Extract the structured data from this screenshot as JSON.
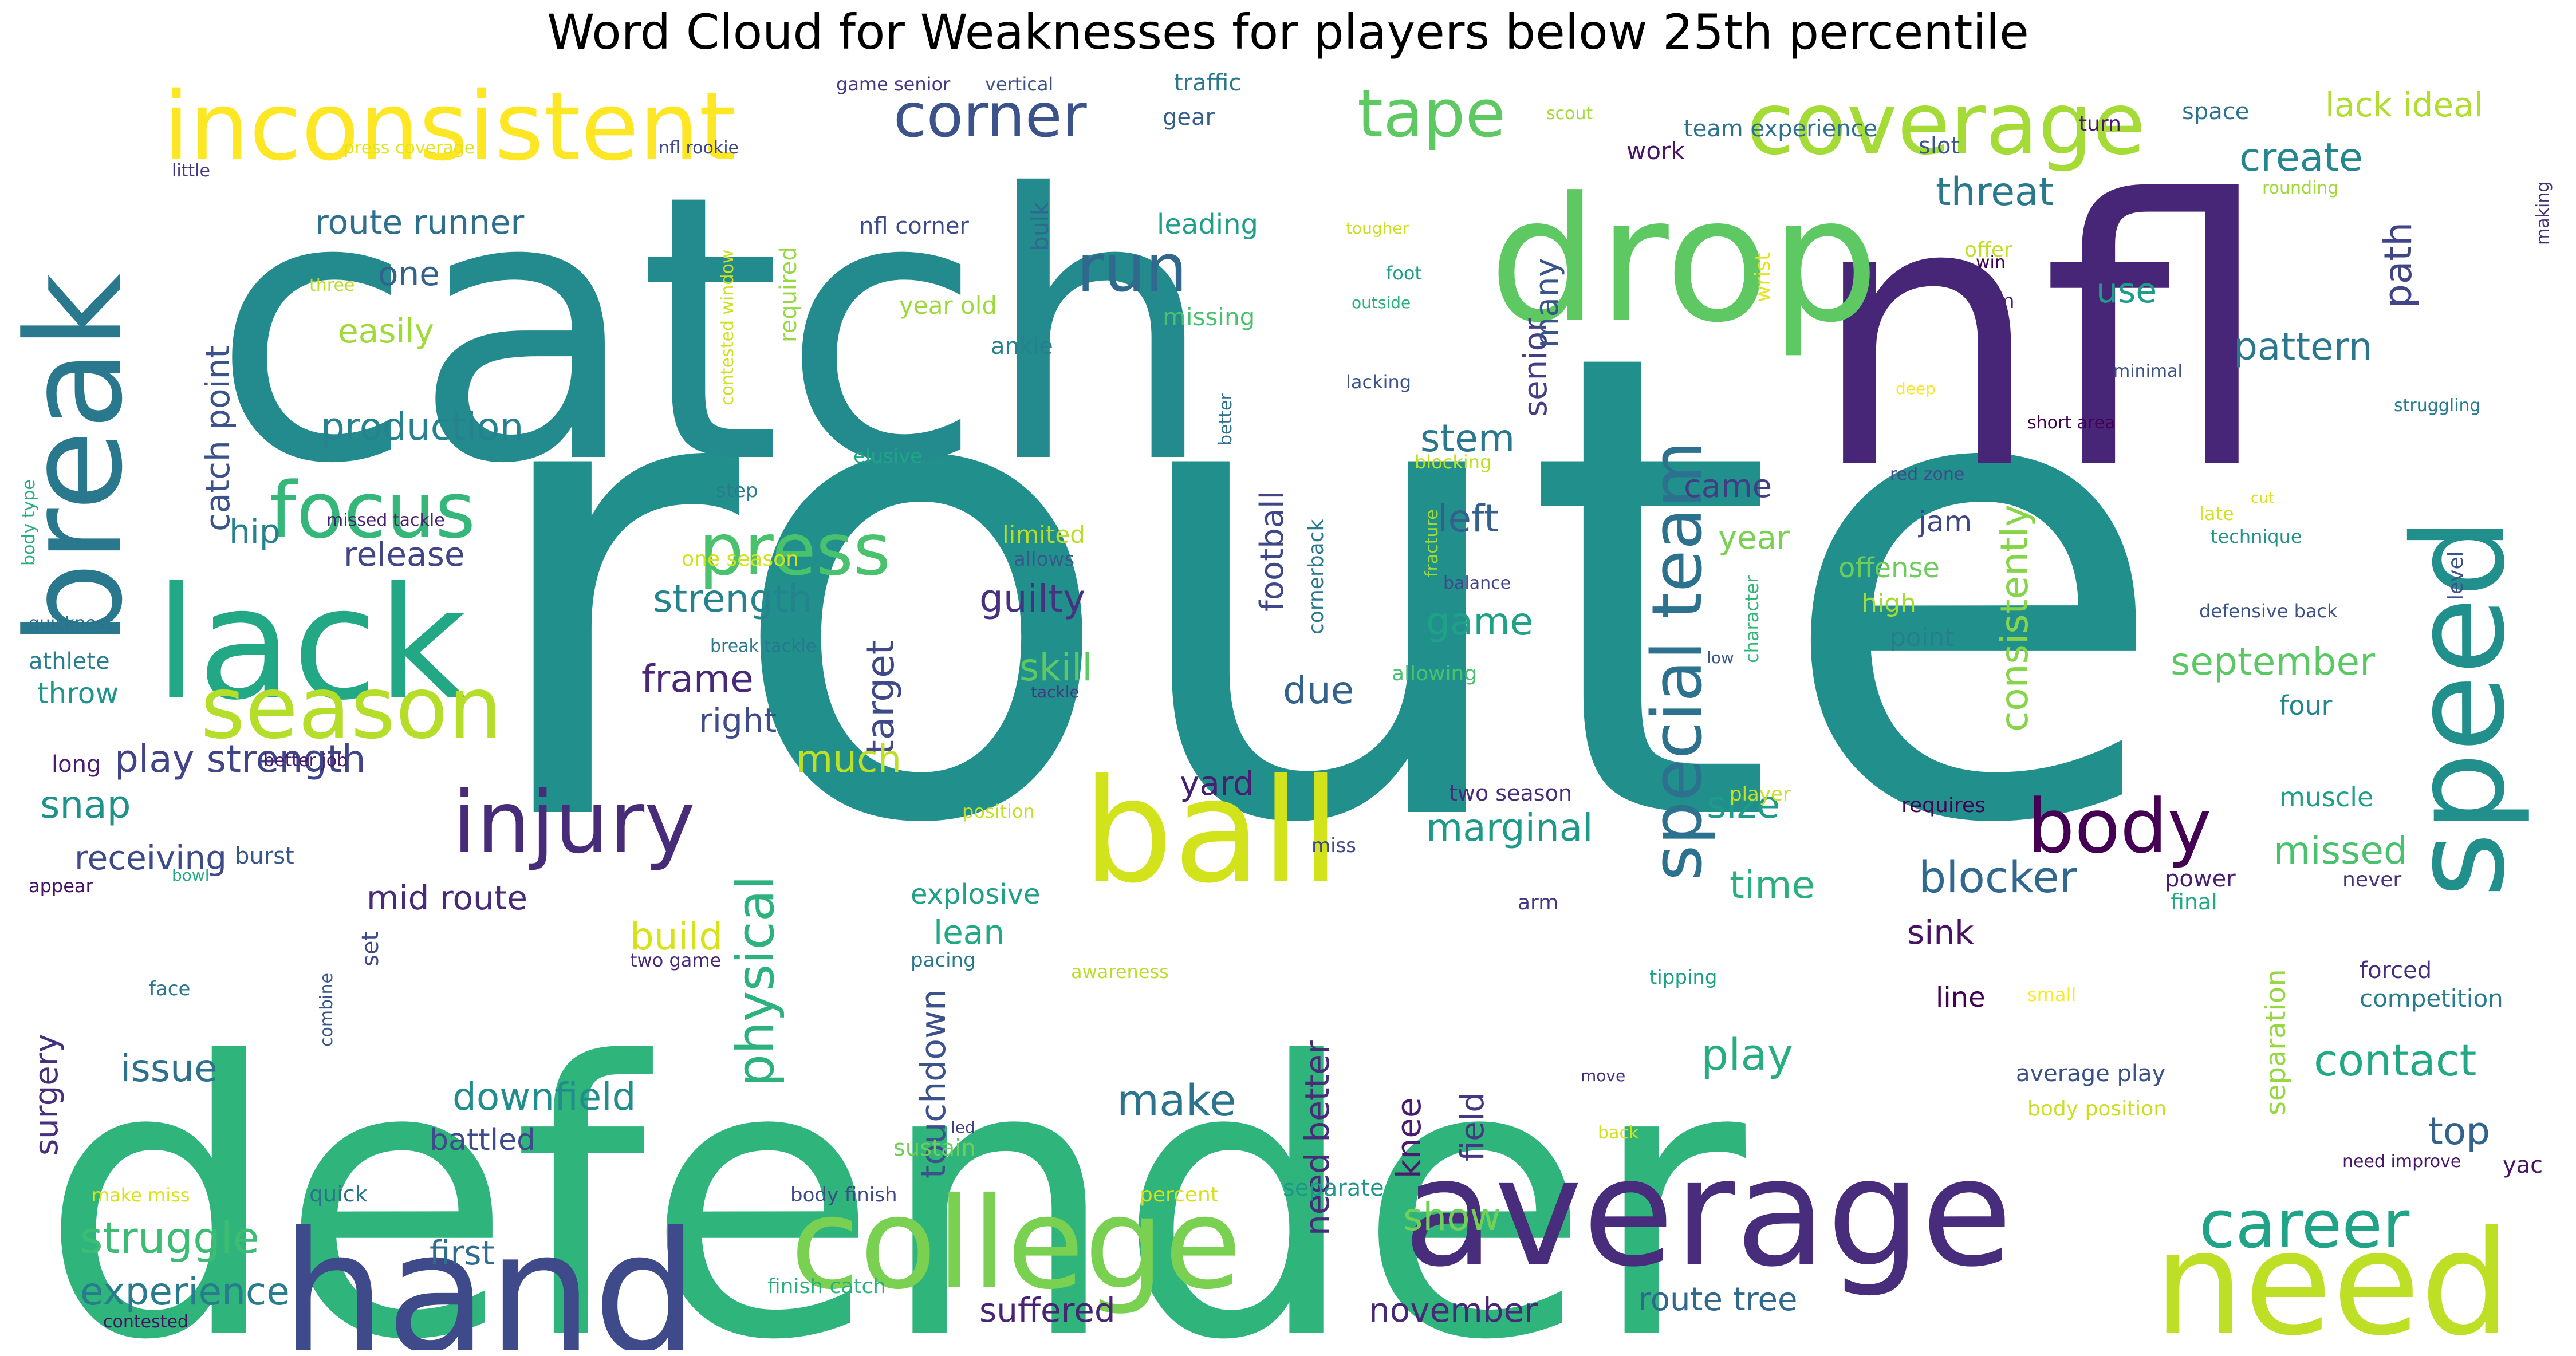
{
  "title": "Word Cloud for Weaknesses for players below 25th percentile",
  "words": [
    {
      "text": "route",
      "color": "#21908d"
    },
    {
      "text": "defender",
      "color": "#2fb47c"
    },
    {
      "text": "catch",
      "color": "#238a8d"
    },
    {
      "text": "nfl",
      "color": "#482677"
    },
    {
      "text": "speed",
      "color": "#21908d"
    },
    {
      "text": "break",
      "color": "#2a788e"
    },
    {
      "text": "lack",
      "color": "#22a884"
    },
    {
      "text": "drop",
      "color": "#5ec962"
    },
    {
      "text": "inconsistent",
      "color": "#fde725"
    },
    {
      "text": "hand",
      "color": "#3e4a89"
    },
    {
      "text": "average",
      "color": "#472d7b"
    },
    {
      "text": "college",
      "color": "#7ad151"
    },
    {
      "text": "need",
      "color": "#bddf26"
    },
    {
      "text": "ball",
      "color": "#d2e21b"
    },
    {
      "text": "coverage",
      "color": "#a5db36"
    },
    {
      "text": "season",
      "color": "#b5de2b"
    },
    {
      "text": "injury",
      "color": "#472c7a"
    },
    {
      "text": "corner",
      "color": "#3b528b"
    },
    {
      "text": "tape",
      "color": "#5ec962"
    },
    {
      "text": "run",
      "color": "#31688e"
    },
    {
      "text": "special team",
      "color": "#2c728e"
    },
    {
      "text": "body",
      "color": "#440154"
    },
    {
      "text": "focus",
      "color": "#35b779"
    },
    {
      "text": "press",
      "color": "#4ac16d"
    },
    {
      "text": "physical",
      "color": "#2db27d"
    },
    {
      "text": "career",
      "color": "#20a386"
    },
    {
      "text": "route runner",
      "color": "#2e6f8e"
    },
    {
      "text": "catch point",
      "color": "#3b528b"
    },
    {
      "text": "one",
      "color": "#33638d"
    },
    {
      "text": "easily",
      "color": "#a0da39"
    },
    {
      "text": "production",
      "color": "#26828e"
    },
    {
      "text": "threat",
      "color": "#29798e"
    },
    {
      "text": "create",
      "color": "#24868e"
    },
    {
      "text": "lack ideal",
      "color": "#b0dd2f"
    },
    {
      "text": "use",
      "color": "#1e9c89"
    },
    {
      "text": "path",
      "color": "#414487"
    },
    {
      "text": "pattern",
      "color": "#2a778e"
    },
    {
      "text": "consistently",
      "color": "#86d549"
    },
    {
      "text": "strength",
      "color": "#25838e"
    },
    {
      "text": "frame",
      "color": "#482878"
    },
    {
      "text": "guilty",
      "color": "#46327e"
    },
    {
      "text": "skill",
      "color": "#5ec962"
    },
    {
      "text": "target",
      "color": "#3e4989"
    },
    {
      "text": "left",
      "color": "#355f8d"
    },
    {
      "text": "stem",
      "color": "#2a788e"
    },
    {
      "text": "football",
      "color": "#3f4788"
    },
    {
      "text": "senior",
      "color": "#433e85"
    },
    {
      "text": "many",
      "color": "#39568c"
    },
    {
      "text": "game",
      "color": "#1fa187"
    },
    {
      "text": "year",
      "color": "#7ad151"
    },
    {
      "text": "came",
      "color": "#433d84"
    },
    {
      "text": "jam",
      "color": "#3f4788"
    },
    {
      "text": "september",
      "color": "#5cc863"
    },
    {
      "text": "four",
      "color": "#24868e"
    },
    {
      "text": "offense",
      "color": "#6ccd5a"
    },
    {
      "text": "high",
      "color": "#a5db36"
    },
    {
      "text": "point",
      "color": "#287d8e"
    },
    {
      "text": "due",
      "color": "#33638d"
    },
    {
      "text": "right",
      "color": "#3e4c8a"
    },
    {
      "text": "much",
      "color": "#bddf26"
    },
    {
      "text": "play strength",
      "color": "#414487"
    },
    {
      "text": "release",
      "color": "#404688"
    },
    {
      "text": "hip",
      "color": "#26818e"
    },
    {
      "text": "throw",
      "color": "#1f968b"
    },
    {
      "text": "athlete",
      "color": "#287d8e"
    },
    {
      "text": "snap",
      "color": "#20928c"
    },
    {
      "text": "receiving",
      "color": "#3e4a89"
    },
    {
      "text": "mid route",
      "color": "#472a7a"
    },
    {
      "text": "build",
      "color": "#d8e219"
    },
    {
      "text": "yard",
      "color": "#481f70"
    },
    {
      "text": "marginal",
      "color": "#1f9a8a"
    },
    {
      "text": "time",
      "color": "#2ab07f"
    },
    {
      "text": "size",
      "color": "#1e9b8a"
    },
    {
      "text": "blocker",
      "color": "#31688e"
    },
    {
      "text": "missed",
      "color": "#4ac16d"
    },
    {
      "text": "sink",
      "color": "#471164"
    },
    {
      "text": "lean",
      "color": "#22a884"
    },
    {
      "text": "explosive",
      "color": "#1fa088"
    },
    {
      "text": "touchdown",
      "color": "#3b528b"
    },
    {
      "text": "surgery",
      "color": "#46307e"
    },
    {
      "text": "issue",
      "color": "#2c728e"
    },
    {
      "text": "downfield",
      "color": "#228d8d"
    },
    {
      "text": "battled",
      "color": "#3e4a89"
    },
    {
      "text": "make",
      "color": "#2c738e"
    },
    {
      "text": "need better",
      "color": "#472c7a"
    },
    {
      "text": "knee",
      "color": "#481b6d"
    },
    {
      "text": "field",
      "color": "#453882"
    },
    {
      "text": "show",
      "color": "#73d056"
    },
    {
      "text": "play",
      "color": "#27ad81"
    },
    {
      "text": "contact",
      "color": "#22a884"
    },
    {
      "text": "top",
      "color": "#33638d"
    },
    {
      "text": "separation",
      "color": "#95d840"
    },
    {
      "text": "line",
      "color": "#440154"
    },
    {
      "text": "struggle",
      "color": "#3dbc74"
    },
    {
      "text": "experience",
      "color": "#287c8e"
    },
    {
      "text": "first",
      "color": "#2f6c8e"
    },
    {
      "text": "suffered",
      "color": "#482475"
    },
    {
      "text": "november",
      "color": "#482878"
    },
    {
      "text": "route tree",
      "color": "#31688e"
    },
    {
      "text": "work",
      "color": "#481467"
    },
    {
      "text": "team experience",
      "color": "#2c728e"
    },
    {
      "text": "slot",
      "color": "#3a548c"
    },
    {
      "text": "gear",
      "color": "#355e8d"
    },
    {
      "text": "traffic",
      "color": "#2a788e"
    },
    {
      "text": "leading",
      "color": "#1f9e89"
    },
    {
      "text": "nfl corner",
      "color": "#3e4a89"
    },
    {
      "text": "year old",
      "color": "#9bd93c"
    },
    {
      "text": "missing",
      "color": "#48c16e"
    },
    {
      "text": "ankle",
      "color": "#26818e"
    },
    {
      "text": "bulk",
      "color": "#31688e"
    },
    {
      "text": "required",
      "color": "#95d840"
    },
    {
      "text": "contested window",
      "color": "#cde11d"
    },
    {
      "text": "wrist",
      "color": "#e5e419"
    },
    {
      "text": "offer",
      "color": "#c0df25"
    },
    {
      "text": "win",
      "color": "#440154"
    },
    {
      "text": "film",
      "color": "#482475"
    },
    {
      "text": "minimal",
      "color": "#3b528b"
    },
    {
      "text": "rounding",
      "color": "#a0da39"
    },
    {
      "text": "making",
      "color": "#46307e"
    },
    {
      "text": "space",
      "color": "#2c728e"
    },
    {
      "text": "turn",
      "color": "#481a6c"
    },
    {
      "text": "scout",
      "color": "#a2da37"
    },
    {
      "text": "game senior",
      "color": "#453781"
    },
    {
      "text": "vertical",
      "color": "#3b528b"
    },
    {
      "text": "press coverage",
      "color": "#e5e419"
    },
    {
      "text": "nfl rookie",
      "color": "#3e4989"
    },
    {
      "text": "little",
      "color": "#453581"
    },
    {
      "text": "three",
      "color": "#bade28"
    },
    {
      "text": "missed tackle",
      "color": "#482071"
    },
    {
      "text": "tougher",
      "color": "#c8e020"
    },
    {
      "text": "foot",
      "color": "#1f9a8a"
    },
    {
      "text": "outside",
      "color": "#2ab07f"
    },
    {
      "text": "lacking",
      "color": "#3b528b"
    },
    {
      "text": "deep",
      "color": "#fde725"
    },
    {
      "text": "better",
      "color": "#2d718e"
    },
    {
      "text": "blocking",
      "color": "#bddf26"
    },
    {
      "text": "struggling",
      "color": "#287c8e"
    },
    {
      "text": "short area",
      "color": "#440154"
    },
    {
      "text": "red zone",
      "color": "#3e4a89"
    },
    {
      "text": "late",
      "color": "#d2e21b"
    },
    {
      "text": "cut",
      "color": "#d8e219"
    },
    {
      "text": "technique",
      "color": "#21918c"
    },
    {
      "text": "level",
      "color": "#3b528b"
    },
    {
      "text": "elusive",
      "color": "#20a486"
    },
    {
      "text": "step",
      "color": "#297b8e"
    },
    {
      "text": "limited",
      "color": "#bade28"
    },
    {
      "text": "allows",
      "color": "#38598c"
    },
    {
      "text": "one season",
      "color": "#d2e21b"
    },
    {
      "text": "break tackle",
      "color": "#2a768e"
    },
    {
      "text": "tackle",
      "color": "#453882"
    },
    {
      "text": "allowing",
      "color": "#4ac16d"
    },
    {
      "text": "balance",
      "color": "#404688"
    },
    {
      "text": "fracture",
      "color": "#9fda3a"
    },
    {
      "text": "cornerback",
      "color": "#2a788e"
    },
    {
      "text": "character",
      "color": "#35b779"
    },
    {
      "text": "low",
      "color": "#38588c"
    },
    {
      "text": "defensive back",
      "color": "#3b528b"
    },
    {
      "text": "quickness",
      "color": "#2c728e"
    },
    {
      "text": "body type",
      "color": "#26ad81"
    },
    {
      "text": "long",
      "color": "#481f70"
    },
    {
      "text": "better job",
      "color": "#481a6c"
    },
    {
      "text": "burst",
      "color": "#39568c"
    },
    {
      "text": "appear",
      "color": "#471365"
    },
    {
      "text": "bowl",
      "color": "#22a785"
    },
    {
      "text": "position",
      "color": "#c2df23"
    },
    {
      "text": "player",
      "color": "#c8e020"
    },
    {
      "text": "two season",
      "color": "#472c7a"
    },
    {
      "text": "miss",
      "color": "#3e4a89"
    },
    {
      "text": "requires",
      "color": "#440154"
    },
    {
      "text": "muscle",
      "color": "#1f9e89"
    },
    {
      "text": "power",
      "color": "#481f70"
    },
    {
      "text": "final",
      "color": "#22a884"
    },
    {
      "text": "never",
      "color": "#46327e"
    },
    {
      "text": "set",
      "color": "#3f4889"
    },
    {
      "text": "arm",
      "color": "#453882"
    },
    {
      "text": "two game",
      "color": "#482878"
    },
    {
      "text": "pacing",
      "color": "#2a788e"
    },
    {
      "text": "awareness",
      "color": "#b8de29"
    },
    {
      "text": "tipping",
      "color": "#1fa188"
    },
    {
      "text": "small",
      "color": "#fde725"
    },
    {
      "text": "forced",
      "color": "#472e7c"
    },
    {
      "text": "competition",
      "color": "#287c8e"
    },
    {
      "text": "face",
      "color": "#2a788e"
    },
    {
      "text": "combine",
      "color": "#39568c"
    },
    {
      "text": "sustain",
      "color": "#6ece58"
    },
    {
      "text": "led",
      "color": "#423f85"
    },
    {
      "text": "move",
      "color": "#46307e"
    },
    {
      "text": "back",
      "color": "#d2e21b"
    },
    {
      "text": "average play",
      "color": "#3b528b"
    },
    {
      "text": "body position",
      "color": "#c8e020"
    },
    {
      "text": "need improve",
      "color": "#481769"
    },
    {
      "text": "yac",
      "color": "#471365"
    },
    {
      "text": "make miss",
      "color": "#d8e219"
    },
    {
      "text": "quick",
      "color": "#2c728e"
    },
    {
      "text": "body finish",
      "color": "#3e4a89"
    },
    {
      "text": "percent",
      "color": "#d5e21a"
    },
    {
      "text": "separate",
      "color": "#1f968b"
    },
    {
      "text": "finish catch",
      "color": "#2ab07f"
    },
    {
      "text": "contested",
      "color": "#471063"
    }
  ]
}
